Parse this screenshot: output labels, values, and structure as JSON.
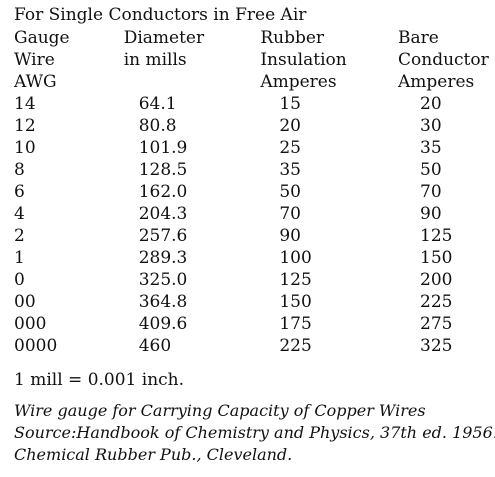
{
  "title": "For Single Conductors in Free Air",
  "table": {
    "headers": [
      [
        "Gauge",
        "Wire",
        "AWG"
      ],
      [
        "Diameter",
        "in mills",
        ""
      ],
      [
        "Rubber",
        "Insulation",
        "Amperes"
      ],
      [
        "Bare",
        "Conductor",
        "Amperes"
      ]
    ],
    "rows": [
      [
        "14",
        "64.1",
        "15",
        "20"
      ],
      [
        "12",
        "80.8",
        "20",
        "30"
      ],
      [
        "10",
        "101.9",
        "25",
        "35"
      ],
      [
        "8",
        "128.5",
        "35",
        "50"
      ],
      [
        "6",
        "162.0",
        "50",
        "70"
      ],
      [
        "4",
        "204.3",
        "70",
        "90"
      ],
      [
        "2",
        "257.6",
        "90",
        "125"
      ],
      [
        "1",
        "289.3",
        "100",
        "150"
      ],
      [
        "0",
        "325.0",
        "125",
        "200"
      ],
      [
        "00",
        "364.8",
        "150",
        "225"
      ],
      [
        "000",
        "409.6",
        "175",
        "275"
      ],
      [
        "0000",
        "460",
        "225",
        "325"
      ]
    ]
  },
  "note": "1 mill = 0.001 inch.",
  "caption": {
    "line1": "Wire gauge for Carrying Capacity of Copper Wires",
    "line2": "Source:Handbook of Chemistry and Physics, 37th ed. 1956.",
    "line3": "Chemical Rubber Pub., Cleveland."
  }
}
